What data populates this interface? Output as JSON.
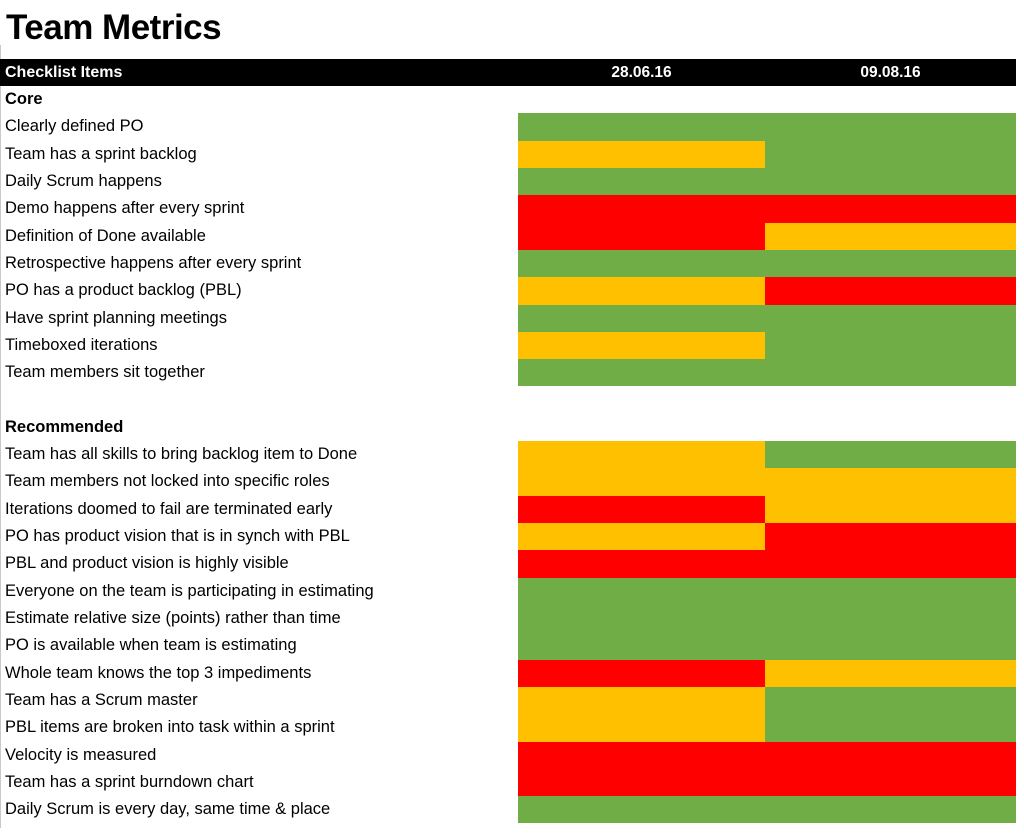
{
  "title": "Team Metrics",
  "header": {
    "items_label": "Checklist Items",
    "col1": "28.06.16",
    "col2": "09.08.16"
  },
  "colors": {
    "green": "#70AD47",
    "yellow": "#FFC000",
    "red": "#FF0000",
    "header_bg": "#000000",
    "header_fg": "#FFFFFF"
  },
  "chart_data": {
    "type": "heatmap",
    "title": "Team Metrics",
    "columns": [
      "28.06.16",
      "09.08.16"
    ],
    "legend_position": "none",
    "value_scale": [
      "green",
      "yellow",
      "red"
    ],
    "sections": [
      {
        "name": "Core",
        "rows": [
          {
            "label": "Clearly defined PO",
            "values": [
              "green",
              "green"
            ]
          },
          {
            "label": "Team has a sprint backlog",
            "values": [
              "yellow",
              "green"
            ]
          },
          {
            "label": "Daily Scrum happens",
            "values": [
              "green",
              "green"
            ]
          },
          {
            "label": "Demo happens after every sprint",
            "values": [
              "red",
              "red"
            ]
          },
          {
            "label": "Definition of Done available",
            "values": [
              "red",
              "yellow"
            ]
          },
          {
            "label": "Retrospective happens after every sprint",
            "values": [
              "green",
              "green"
            ]
          },
          {
            "label": "PO has a product backlog (PBL)",
            "values": [
              "yellow",
              "red"
            ]
          },
          {
            "label": "Have sprint planning meetings",
            "values": [
              "green",
              "green"
            ]
          },
          {
            "label": "Timeboxed iterations",
            "values": [
              "yellow",
              "green"
            ]
          },
          {
            "label": "Team members sit together",
            "values": [
              "green",
              "green"
            ]
          }
        ]
      },
      {
        "name": "Recommended",
        "rows": [
          {
            "label": "Team has all skills to bring backlog item to Done",
            "values": [
              "yellow",
              "green"
            ]
          },
          {
            "label": "Team members not locked into specific roles",
            "values": [
              "yellow",
              "yellow"
            ]
          },
          {
            "label": "Iterations doomed to fail are terminated early",
            "values": [
              "red",
              "yellow"
            ]
          },
          {
            "label": "PO has product vision that is in synch with PBL",
            "values": [
              "yellow",
              "red"
            ]
          },
          {
            "label": "PBL and product vision is highly visible",
            "values": [
              "red",
              "red"
            ]
          },
          {
            "label": "Everyone on the team is participating in estimating",
            "values": [
              "green",
              "green"
            ]
          },
          {
            "label": "Estimate relative size (points) rather than time",
            "values": [
              "green",
              "green"
            ]
          },
          {
            "label": "PO is available when team is estimating",
            "values": [
              "green",
              "green"
            ]
          },
          {
            "label": "Whole team knows the top 3 impediments",
            "values": [
              "red",
              "yellow"
            ]
          },
          {
            "label": "Team has a Scrum master",
            "values": [
              "yellow",
              "green"
            ]
          },
          {
            "label": "PBL items are broken into task within a sprint",
            "values": [
              "yellow",
              "green"
            ]
          },
          {
            "label": "Velocity is measured",
            "values": [
              "red",
              "red"
            ]
          },
          {
            "label": "Team has a sprint burndown chart",
            "values": [
              "red",
              "red"
            ]
          },
          {
            "label": "Daily Scrum is every day, same time & place",
            "values": [
              "green",
              "green"
            ]
          }
        ]
      }
    ]
  }
}
